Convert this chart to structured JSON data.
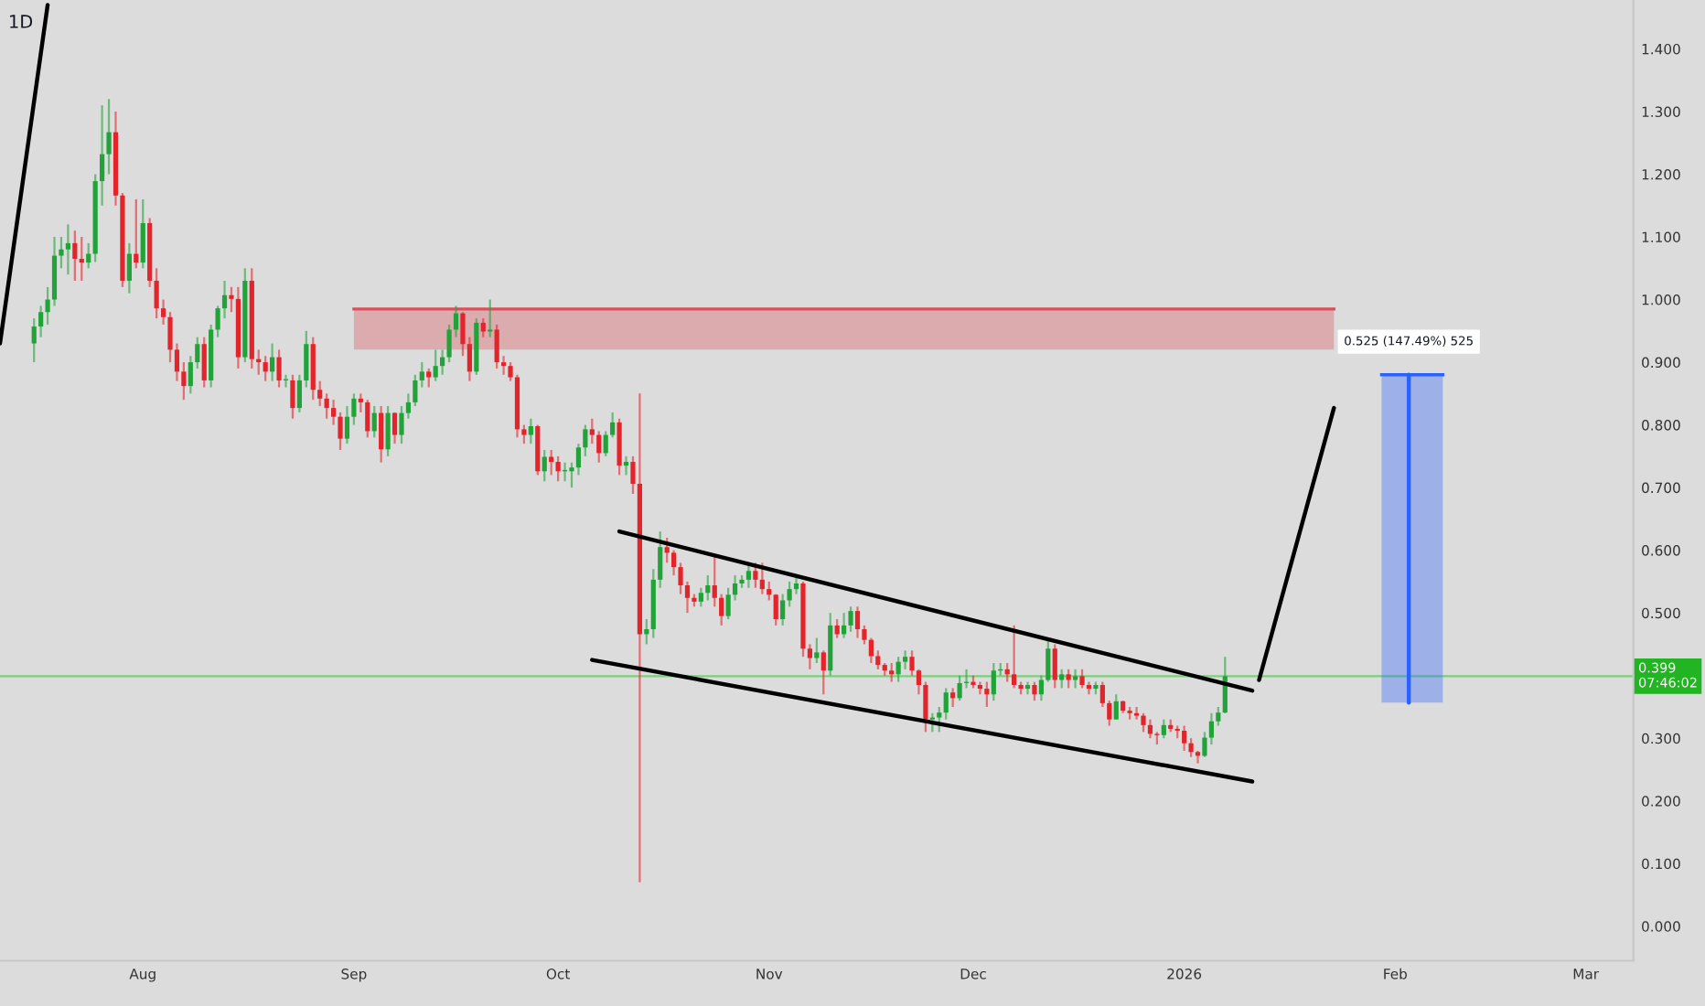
{
  "chart_data": {
    "type": "candlestick",
    "title": "1D",
    "annotations": [
      {
        "text": "0.525 (147.49%) 525",
        "x": "2026-02-03",
        "y": 0.88
      }
    ],
    "x": [
      "2025-07-16",
      "2025-07-17",
      "2025-07-18",
      "2025-07-19",
      "2025-07-20",
      "2025-07-21",
      "2025-07-22",
      "2025-07-23",
      "2025-07-24",
      "2025-07-25",
      "2025-07-26",
      "2025-07-27",
      "2025-07-28",
      "2025-07-29",
      "2025-07-30",
      "2025-07-31",
      "2025-08-01",
      "2025-08-02",
      "2025-08-03",
      "2025-08-04",
      "2025-08-05",
      "2025-08-06",
      "2025-08-07",
      "2025-08-08",
      "2025-08-09",
      "2025-08-10",
      "2025-08-11",
      "2025-08-12",
      "2025-08-13",
      "2025-08-14",
      "2025-08-15",
      "2025-08-16",
      "2025-08-17",
      "2025-08-18",
      "2025-08-19",
      "2025-08-20",
      "2025-08-21",
      "2025-08-22",
      "2025-08-23",
      "2025-08-24",
      "2025-08-25",
      "2025-08-26",
      "2025-08-27",
      "2025-08-28",
      "2025-08-29",
      "2025-08-30",
      "2025-08-31",
      "2025-09-01",
      "2025-09-02",
      "2025-09-03",
      "2025-09-04",
      "2025-09-05",
      "2025-09-06",
      "2025-09-07",
      "2025-09-08",
      "2025-09-09",
      "2025-09-10",
      "2025-09-11",
      "2025-09-12",
      "2025-09-13",
      "2025-09-14",
      "2025-09-15",
      "2025-09-16",
      "2025-09-17",
      "2025-09-18",
      "2025-09-19",
      "2025-09-20",
      "2025-09-21",
      "2025-09-22",
      "2025-09-23",
      "2025-09-24",
      "2025-09-25",
      "2025-09-26",
      "2025-09-27",
      "2025-09-28",
      "2025-09-29",
      "2025-09-30",
      "2025-10-01",
      "2025-10-02",
      "2025-10-03",
      "2025-10-04",
      "2025-10-05",
      "2025-10-06",
      "2025-10-07",
      "2025-10-08",
      "2025-10-09",
      "2025-10-10",
      "2025-10-11",
      "2025-10-12",
      "2025-10-13",
      "2025-10-14",
      "2025-10-15",
      "2025-10-16",
      "2025-10-17",
      "2025-10-18",
      "2025-10-19",
      "2025-10-20",
      "2025-10-21",
      "2025-10-22",
      "2025-10-23",
      "2025-10-24",
      "2025-10-25",
      "2025-10-26",
      "2025-10-27",
      "2025-10-28",
      "2025-10-29",
      "2025-10-30",
      "2025-10-31",
      "2025-11-01",
      "2025-11-02",
      "2025-11-03",
      "2025-11-04",
      "2025-11-05",
      "2025-11-06",
      "2025-11-07",
      "2025-11-08",
      "2025-11-09",
      "2025-11-10",
      "2025-11-11",
      "2025-11-12",
      "2025-11-13",
      "2025-11-14",
      "2025-11-15",
      "2025-11-16",
      "2025-11-17",
      "2025-11-18",
      "2025-11-19",
      "2025-11-20",
      "2025-11-21",
      "2025-11-22",
      "2025-11-23",
      "2025-11-24",
      "2025-11-25",
      "2025-11-26",
      "2025-11-27",
      "2025-11-28",
      "2025-11-29",
      "2025-11-30",
      "2025-12-01",
      "2025-12-02",
      "2025-12-03",
      "2025-12-04",
      "2025-12-05",
      "2025-12-06",
      "2025-12-07",
      "2025-12-08",
      "2025-12-09",
      "2025-12-10",
      "2025-12-11",
      "2025-12-12",
      "2025-12-13",
      "2025-12-14",
      "2025-12-15",
      "2025-12-16",
      "2025-12-17",
      "2025-12-18",
      "2025-12-19",
      "2025-12-20",
      "2025-12-21",
      "2025-12-22",
      "2025-12-23",
      "2025-12-24",
      "2025-12-25",
      "2025-12-26",
      "2025-12-27",
      "2025-12-28",
      "2025-12-29",
      "2025-12-30",
      "2025-12-31",
      "2026-01-01",
      "2026-01-02",
      "2026-01-03",
      "2026-01-04",
      "2026-01-05",
      "2026-01-06",
      "2026-01-07"
    ],
    "ohlc": [
      [
        0.93,
        0.97,
        0.9,
        0.957
      ],
      [
        0.957,
        0.99,
        0.94,
        0.98
      ],
      [
        0.98,
        1.02,
        0.96,
        1.0
      ],
      [
        1.0,
        1.1,
        0.99,
        1.07
      ],
      [
        1.07,
        1.1,
        1.05,
        1.08
      ],
      [
        1.08,
        1.12,
        1.04,
        1.09
      ],
      [
        1.09,
        1.11,
        1.03,
        1.065
      ],
      [
        1.065,
        1.1,
        1.03,
        1.059
      ],
      [
        1.059,
        1.09,
        1.05,
        1.073
      ],
      [
        1.073,
        1.2,
        1.06,
        1.189
      ],
      [
        1.189,
        1.31,
        1.15,
        1.232
      ],
      [
        1.232,
        1.32,
        1.2,
        1.267
      ],
      [
        1.267,
        1.3,
        1.15,
        1.166
      ],
      [
        1.166,
        1.17,
        1.02,
        1.03
      ],
      [
        1.03,
        1.09,
        1.01,
        1.073
      ],
      [
        1.073,
        1.16,
        1.05,
        1.059
      ],
      [
        1.059,
        1.16,
        1.05,
        1.122
      ],
      [
        1.122,
        1.13,
        1.02,
        1.03
      ],
      [
        1.03,
        1.05,
        0.97,
        0.986
      ],
      [
        0.986,
        1.0,
        0.96,
        0.972
      ],
      [
        0.972,
        0.98,
        0.9,
        0.92
      ],
      [
        0.92,
        0.93,
        0.87,
        0.885
      ],
      [
        0.885,
        0.9,
        0.84,
        0.862
      ],
      [
        0.862,
        0.91,
        0.85,
        0.9
      ],
      [
        0.9,
        0.94,
        0.89,
        0.929
      ],
      [
        0.929,
        0.94,
        0.86,
        0.871
      ],
      [
        0.871,
        0.96,
        0.86,
        0.952
      ],
      [
        0.952,
        0.99,
        0.94,
        0.986
      ],
      [
        0.986,
        1.03,
        0.97,
        1.007
      ],
      [
        1.007,
        1.02,
        0.98,
        1.001
      ],
      [
        1.001,
        1.02,
        0.89,
        0.908
      ],
      [
        0.908,
        1.05,
        0.9,
        1.03
      ],
      [
        1.03,
        1.05,
        0.89,
        0.905
      ],
      [
        0.905,
        0.92,
        0.88,
        0.9
      ],
      [
        0.9,
        0.91,
        0.87,
        0.885
      ],
      [
        0.885,
        0.93,
        0.87,
        0.908
      ],
      [
        0.908,
        0.92,
        0.86,
        0.871
      ],
      [
        0.871,
        0.88,
        0.86,
        0.871
      ],
      [
        0.871,
        0.88,
        0.81,
        0.827
      ],
      [
        0.827,
        0.88,
        0.82,
        0.871
      ],
      [
        0.871,
        0.95,
        0.86,
        0.929
      ],
      [
        0.929,
        0.94,
        0.84,
        0.856
      ],
      [
        0.856,
        0.87,
        0.83,
        0.842
      ],
      [
        0.842,
        0.85,
        0.81,
        0.827
      ],
      [
        0.827,
        0.84,
        0.8,
        0.813
      ],
      [
        0.813,
        0.82,
        0.76,
        0.778
      ],
      [
        0.778,
        0.83,
        0.77,
        0.813
      ],
      [
        0.813,
        0.85,
        0.8,
        0.842
      ],
      [
        0.842,
        0.85,
        0.82,
        0.836
      ],
      [
        0.836,
        0.84,
        0.78,
        0.79
      ],
      [
        0.79,
        0.83,
        0.78,
        0.819
      ],
      [
        0.819,
        0.83,
        0.74,
        0.761
      ],
      [
        0.761,
        0.83,
        0.75,
        0.819
      ],
      [
        0.819,
        0.82,
        0.77,
        0.784
      ],
      [
        0.784,
        0.83,
        0.77,
        0.819
      ],
      [
        0.819,
        0.85,
        0.81,
        0.836
      ],
      [
        0.836,
        0.88,
        0.83,
        0.871
      ],
      [
        0.871,
        0.9,
        0.86,
        0.885
      ],
      [
        0.885,
        0.89,
        0.86,
        0.876
      ],
      [
        0.876,
        0.92,
        0.87,
        0.894
      ],
      [
        0.894,
        0.92,
        0.88,
        0.908
      ],
      [
        0.908,
        0.96,
        0.9,
        0.952
      ],
      [
        0.952,
        0.99,
        0.94,
        0.978
      ],
      [
        0.978,
        0.98,
        0.91,
        0.929
      ],
      [
        0.929,
        0.94,
        0.87,
        0.885
      ],
      [
        0.885,
        0.97,
        0.88,
        0.963
      ],
      [
        0.963,
        0.97,
        0.94,
        0.949
      ],
      [
        0.949,
        1.0,
        0.94,
        0.952
      ],
      [
        0.952,
        0.96,
        0.89,
        0.9
      ],
      [
        0.9,
        0.91,
        0.88,
        0.894
      ],
      [
        0.894,
        0.9,
        0.87,
        0.876
      ],
      [
        0.876,
        0.88,
        0.78,
        0.793
      ],
      [
        0.793,
        0.8,
        0.77,
        0.784
      ],
      [
        0.784,
        0.81,
        0.77,
        0.798
      ],
      [
        0.798,
        0.8,
        0.72,
        0.726
      ],
      [
        0.726,
        0.76,
        0.71,
        0.749
      ],
      [
        0.749,
        0.76,
        0.72,
        0.741
      ],
      [
        0.741,
        0.75,
        0.71,
        0.726
      ],
      [
        0.726,
        0.74,
        0.71,
        0.726
      ],
      [
        0.726,
        0.74,
        0.7,
        0.732
      ],
      [
        0.732,
        0.77,
        0.72,
        0.764
      ],
      [
        0.764,
        0.8,
        0.75,
        0.793
      ],
      [
        0.793,
        0.81,
        0.77,
        0.784
      ],
      [
        0.784,
        0.79,
        0.74,
        0.755
      ],
      [
        0.755,
        0.79,
        0.75,
        0.784
      ],
      [
        0.784,
        0.82,
        0.78,
        0.804
      ],
      [
        0.804,
        0.81,
        0.72,
        0.735
      ],
      [
        0.735,
        0.75,
        0.72,
        0.741
      ],
      [
        0.741,
        0.75,
        0.69,
        0.706
      ],
      [
        0.706,
        0.85,
        0.07,
        0.466
      ],
      [
        0.466,
        0.49,
        0.45,
        0.474
      ],
      [
        0.474,
        0.57,
        0.46,
        0.553
      ],
      [
        0.553,
        0.63,
        0.54,
        0.605
      ],
      [
        0.605,
        0.62,
        0.58,
        0.596
      ],
      [
        0.596,
        0.6,
        0.56,
        0.573
      ],
      [
        0.573,
        0.58,
        0.53,
        0.544
      ],
      [
        0.544,
        0.55,
        0.5,
        0.524
      ],
      [
        0.524,
        0.53,
        0.51,
        0.518
      ],
      [
        0.518,
        0.54,
        0.51,
        0.532
      ],
      [
        0.532,
        0.56,
        0.52,
        0.544
      ],
      [
        0.544,
        0.59,
        0.51,
        0.524
      ],
      [
        0.524,
        0.53,
        0.48,
        0.495
      ],
      [
        0.495,
        0.54,
        0.49,
        0.529
      ],
      [
        0.529,
        0.56,
        0.52,
        0.547
      ],
      [
        0.547,
        0.56,
        0.54,
        0.553
      ],
      [
        0.553,
        0.58,
        0.54,
        0.567
      ],
      [
        0.567,
        0.58,
        0.54,
        0.553
      ],
      [
        0.553,
        0.58,
        0.53,
        0.538
      ],
      [
        0.538,
        0.55,
        0.52,
        0.529
      ],
      [
        0.529,
        0.53,
        0.48,
        0.49
      ],
      [
        0.49,
        0.53,
        0.48,
        0.52
      ],
      [
        0.52,
        0.55,
        0.51,
        0.538
      ],
      [
        0.538,
        0.56,
        0.53,
        0.547
      ],
      [
        0.547,
        0.55,
        0.43,
        0.443
      ],
      [
        0.443,
        0.45,
        0.41,
        0.428
      ],
      [
        0.428,
        0.46,
        0.42,
        0.437
      ],
      [
        0.437,
        0.44,
        0.37,
        0.408
      ],
      [
        0.408,
        0.5,
        0.4,
        0.48
      ],
      [
        0.48,
        0.49,
        0.46,
        0.466
      ],
      [
        0.466,
        0.5,
        0.46,
        0.48
      ],
      [
        0.48,
        0.51,
        0.47,
        0.503
      ],
      [
        0.503,
        0.51,
        0.46,
        0.474
      ],
      [
        0.474,
        0.48,
        0.45,
        0.457
      ],
      [
        0.457,
        0.46,
        0.42,
        0.431
      ],
      [
        0.431,
        0.44,
        0.41,
        0.417
      ],
      [
        0.417,
        0.42,
        0.4,
        0.408
      ],
      [
        0.408,
        0.42,
        0.39,
        0.402
      ],
      [
        0.402,
        0.43,
        0.39,
        0.422
      ],
      [
        0.422,
        0.44,
        0.41,
        0.43
      ],
      [
        0.43,
        0.44,
        0.4,
        0.408
      ],
      [
        0.408,
        0.41,
        0.37,
        0.385
      ],
      [
        0.385,
        0.39,
        0.31,
        0.33
      ],
      [
        0.33,
        0.34,
        0.31,
        0.333
      ],
      [
        0.333,
        0.35,
        0.31,
        0.341
      ],
      [
        0.341,
        0.38,
        0.33,
        0.373
      ],
      [
        0.373,
        0.38,
        0.35,
        0.364
      ],
      [
        0.364,
        0.4,
        0.36,
        0.388
      ],
      [
        0.388,
        0.41,
        0.38,
        0.39
      ],
      [
        0.39,
        0.4,
        0.38,
        0.385
      ],
      [
        0.385,
        0.39,
        0.37,
        0.379
      ],
      [
        0.379,
        0.39,
        0.35,
        0.37
      ],
      [
        0.37,
        0.42,
        0.36,
        0.408
      ],
      [
        0.408,
        0.42,
        0.4,
        0.41
      ],
      [
        0.41,
        0.42,
        0.39,
        0.402
      ],
      [
        0.402,
        0.48,
        0.38,
        0.385
      ],
      [
        0.385,
        0.39,
        0.37,
        0.379
      ],
      [
        0.379,
        0.39,
        0.37,
        0.385
      ],
      [
        0.385,
        0.39,
        0.36,
        0.37
      ],
      [
        0.37,
        0.4,
        0.36,
        0.393
      ],
      [
        0.393,
        0.46,
        0.39,
        0.443
      ],
      [
        0.443,
        0.45,
        0.38,
        0.393
      ],
      [
        0.393,
        0.41,
        0.38,
        0.402
      ],
      [
        0.402,
        0.41,
        0.38,
        0.393
      ],
      [
        0.393,
        0.41,
        0.38,
        0.399
      ],
      [
        0.399,
        0.41,
        0.38,
        0.385
      ],
      [
        0.385,
        0.39,
        0.37,
        0.379
      ],
      [
        0.379,
        0.39,
        0.37,
        0.385
      ],
      [
        0.385,
        0.39,
        0.35,
        0.356
      ],
      [
        0.356,
        0.36,
        0.32,
        0.33
      ],
      [
        0.33,
        0.37,
        0.33,
        0.359
      ],
      [
        0.359,
        0.36,
        0.34,
        0.344
      ],
      [
        0.344,
        0.35,
        0.33,
        0.34
      ],
      [
        0.34,
        0.35,
        0.33,
        0.336
      ],
      [
        0.336,
        0.34,
        0.31,
        0.321
      ],
      [
        0.321,
        0.33,
        0.3,
        0.307
      ],
      [
        0.307,
        0.31,
        0.29,
        0.305
      ],
      [
        0.305,
        0.33,
        0.3,
        0.321
      ],
      [
        0.321,
        0.33,
        0.31,
        0.315
      ],
      [
        0.315,
        0.32,
        0.3,
        0.312
      ],
      [
        0.312,
        0.32,
        0.28,
        0.292
      ],
      [
        0.292,
        0.3,
        0.27,
        0.278
      ],
      [
        0.278,
        0.28,
        0.26,
        0.272
      ],
      [
        0.272,
        0.31,
        0.27,
        0.301
      ],
      [
        0.301,
        0.34,
        0.29,
        0.327
      ],
      [
        0.327,
        0.35,
        0.32,
        0.341
      ],
      [
        0.341,
        0.43,
        0.34,
        0.399
      ]
    ],
    "series": [
      {
        "type": "line",
        "color": "#000000",
        "x": [
          "2025-07-11",
          "2025-07-18"
        ],
        "values": [
          0.93,
          1.47
        ]
      },
      {
        "type": "line",
        "color": "#000000",
        "x": [
          "2025-10-10",
          "2026-01-11"
        ],
        "values": [
          0.63,
          0.376
        ]
      },
      {
        "type": "line",
        "color": "#000000",
        "x": [
          "2025-10-06",
          "2026-01-11"
        ],
        "values": [
          0.425,
          0.231
        ]
      },
      {
        "type": "line",
        "color": "#000000",
        "x": [
          "2026-01-12",
          "2026-01-23"
        ],
        "values": [
          0.393,
          0.827
        ]
      },
      {
        "type": "line",
        "color": "#d9505a",
        "x": [
          "2025-09-01",
          "2026-01-23"
        ],
        "values": [
          0.985,
          0.985
        ],
        "lower": [
          0.92,
          0.92
        ],
        "upper": [
          0.985,
          0.985
        ]
      },
      {
        "type": "line",
        "color": "#2962ff",
        "x": [
          "2026-01-30",
          "2026-02-08"
        ],
        "values": [
          0.88,
          0.88
        ],
        "lower": [
          0.357,
          0.357
        ],
        "upper": [
          0.88,
          0.88
        ]
      },
      {
        "type": "line",
        "color": "#2962ff",
        "x": [
          "2026-02-03",
          "2026-02-03"
        ],
        "values": [
          0.357,
          0.88
        ]
      }
    ],
    "ref_lines": [
      {
        "axis": "y",
        "value": 0.399,
        "label": "0.399\n07:46:02",
        "color": "#7ccf7c"
      }
    ],
    "xlim": [
      "2025-07-11",
      "2026-03-08"
    ],
    "xticks": [
      {
        "value": "2025-08-01",
        "label": "Aug"
      },
      {
        "value": "2025-09-01",
        "label": "Sep"
      },
      {
        "value": "2025-10-01",
        "label": "Oct"
      },
      {
        "value": "2025-11-01",
        "label": "Nov"
      },
      {
        "value": "2025-12-01",
        "label": "Dec"
      },
      {
        "value": "2026-01-01",
        "label": "2026"
      },
      {
        "value": "2026-02-01",
        "label": "Feb"
      },
      {
        "value": "2026-03-01",
        "label": "Mar"
      }
    ],
    "ylim": [
      -0.055,
      1.478
    ],
    "yticks": [
      {
        "value": 0,
        "label": "0.000"
      },
      {
        "value": 0.1,
        "label": "0.100"
      },
      {
        "value": 0.2,
        "label": "0.200"
      },
      {
        "value": 0.3,
        "label": "0.300"
      },
      {
        "value": 0.4,
        "label": null
      },
      {
        "value": 0.5,
        "label": "0.500"
      },
      {
        "value": 0.6,
        "label": "0.600"
      },
      {
        "value": 0.7,
        "label": "0.700"
      },
      {
        "value": 0.8,
        "label": "0.800"
      },
      {
        "value": 0.9,
        "label": "0.900"
      },
      {
        "value": 1.0,
        "label": "1.000"
      },
      {
        "value": 1.1,
        "label": "1.100"
      },
      {
        "value": 1.2,
        "label": "1.200"
      },
      {
        "value": 1.3,
        "label": "1.300"
      },
      {
        "value": 1.4,
        "label": "1.400"
      }
    ]
  }
}
